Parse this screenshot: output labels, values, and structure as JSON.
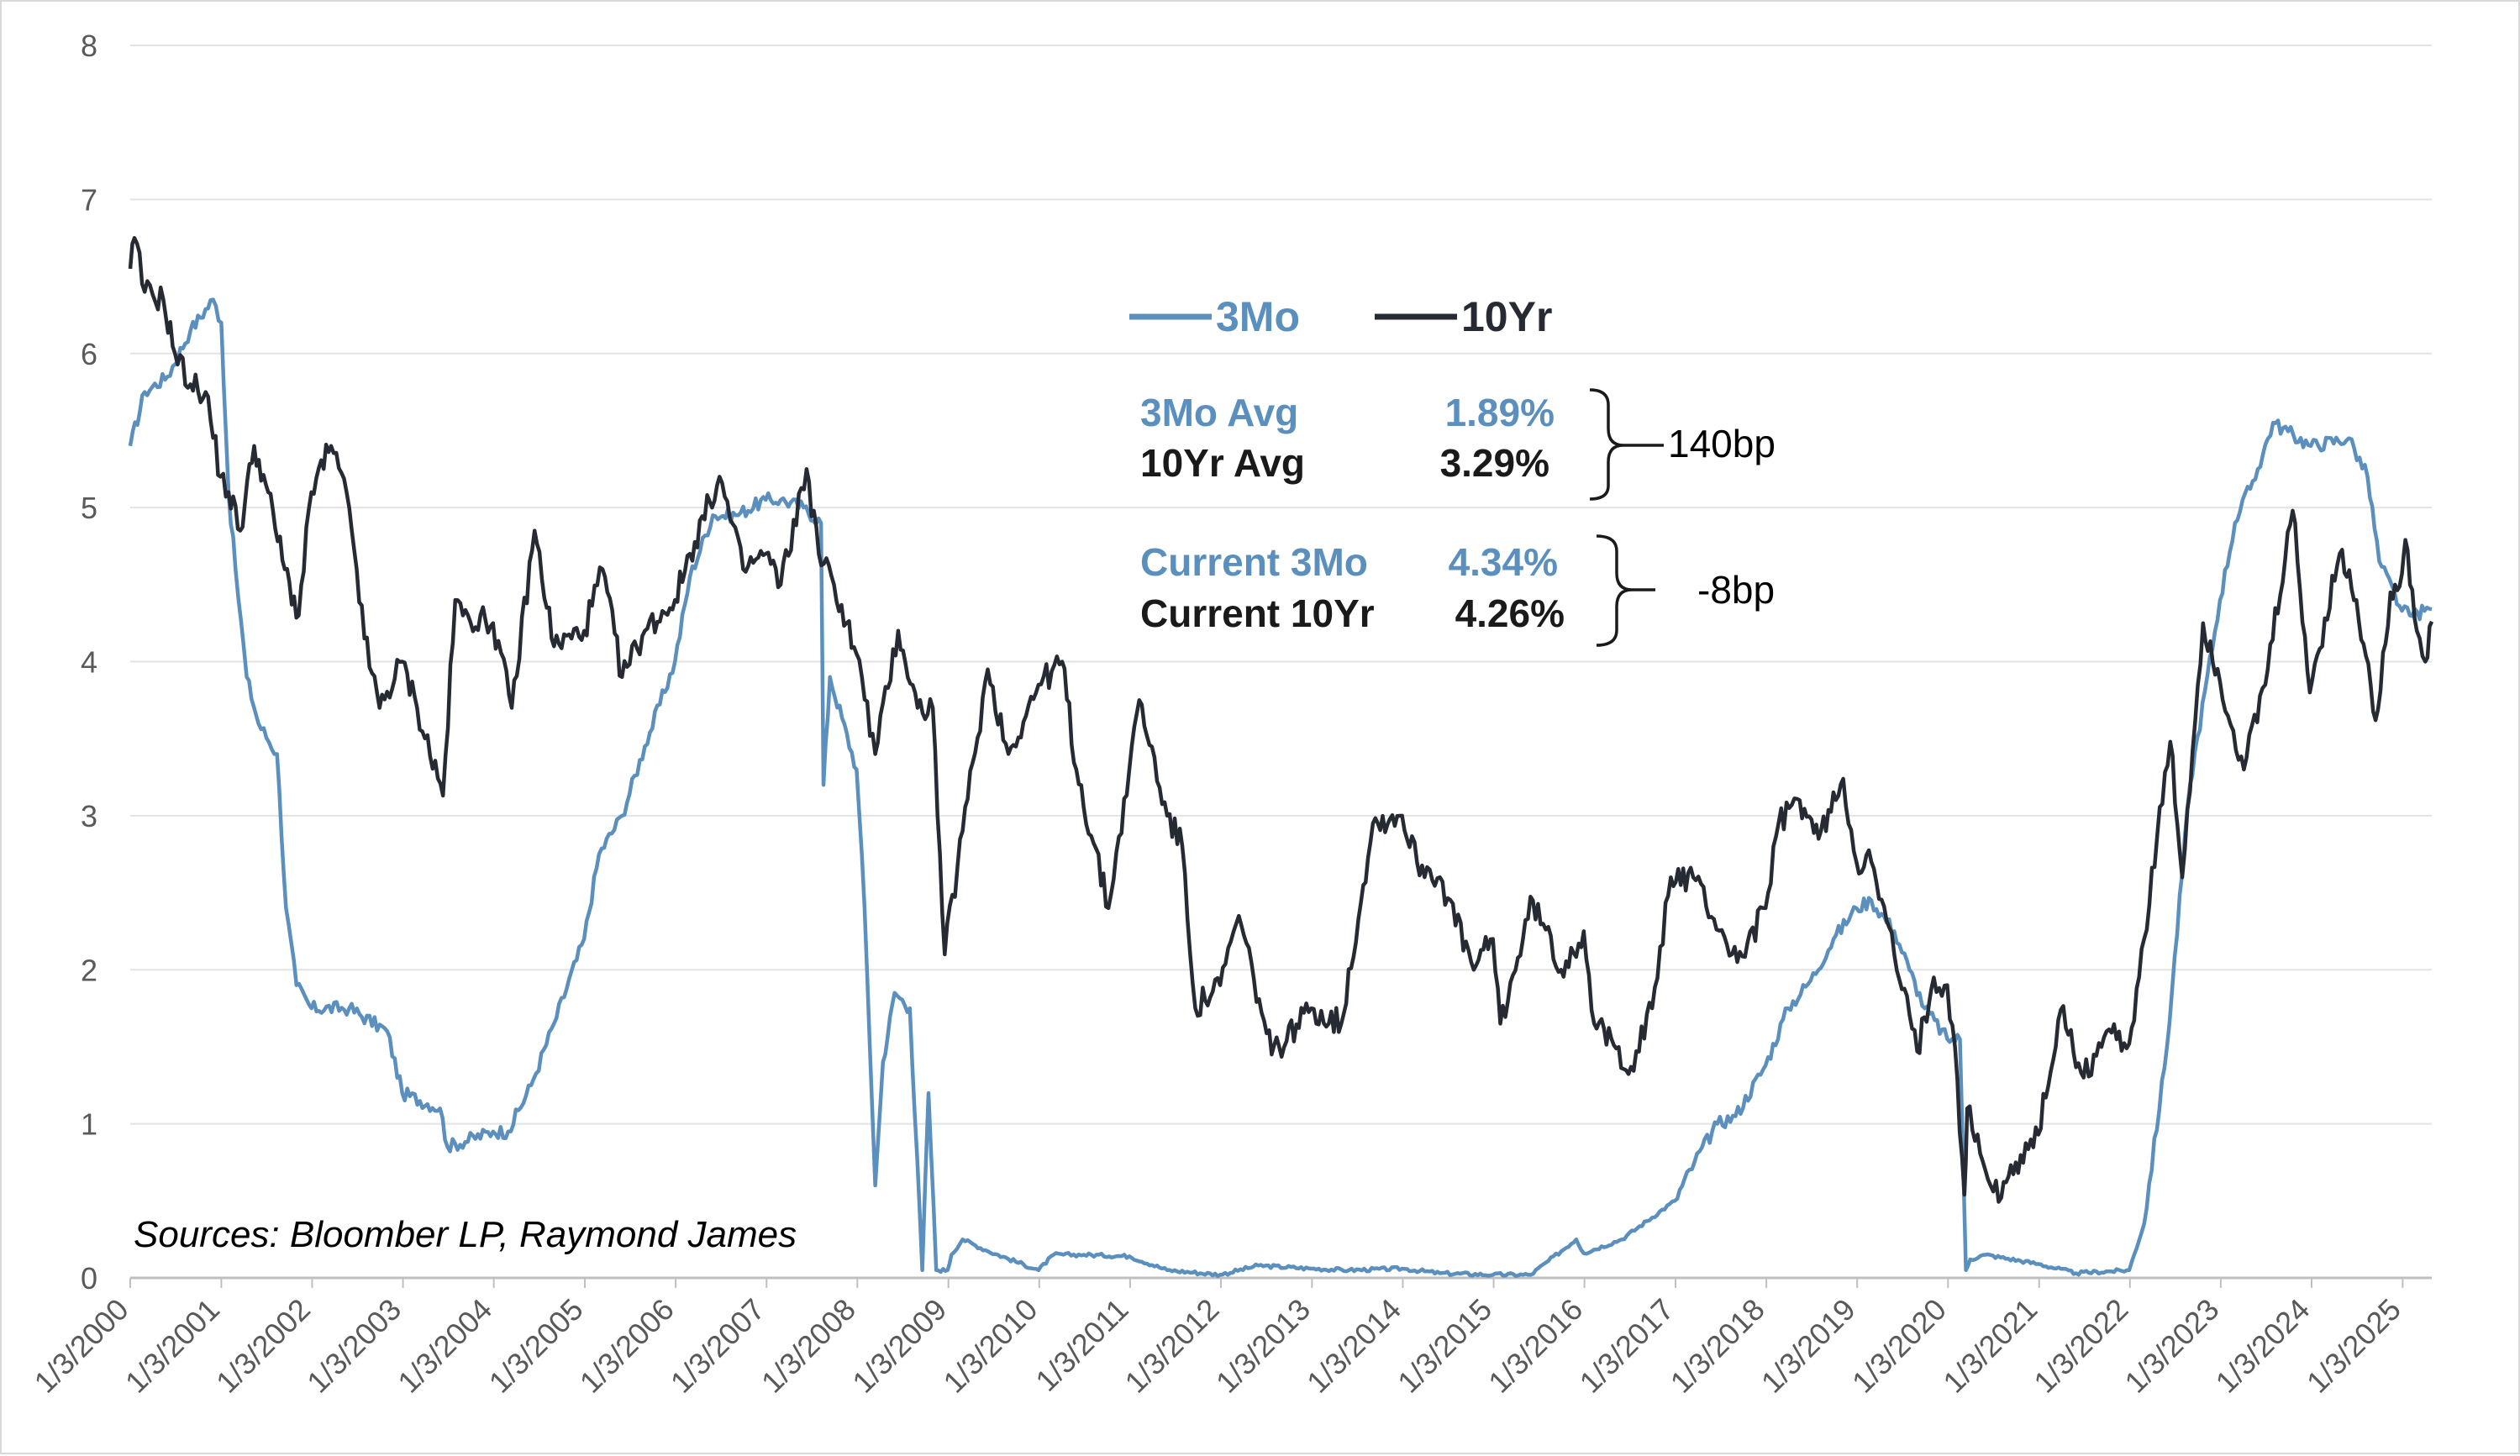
{
  "chart_data": {
    "type": "line",
    "title": "",
    "xlabel": "",
    "ylabel": "",
    "ylim": [
      0,
      8
    ],
    "yticks": [
      0,
      1,
      2,
      3,
      4,
      5,
      6,
      7,
      8
    ],
    "xlim": [
      "2000-01-03",
      "2025-04-30"
    ],
    "xtick_labels": [
      "1/3/2000",
      "1/3/2001",
      "1/3/2002",
      "1/3/2003",
      "1/3/2004",
      "1/3/2005",
      "1/3/2006",
      "1/3/2007",
      "1/3/2008",
      "1/3/2009",
      "1/3/2010",
      "1/3/2011",
      "1/3/2012",
      "1/3/2013",
      "1/3/2014",
      "1/3/2015",
      "1/3/2016",
      "1/3/2017",
      "1/3/2018",
      "1/3/2019",
      "1/3/2020",
      "1/3/2021",
      "1/3/2022",
      "1/3/2023",
      "1/3/2024",
      "1/3/2025"
    ],
    "grid": "horizontal",
    "legend_position": "top-center",
    "colors": {
      "3Mo": "#5b8fbd",
      "10Yr": "#262a33"
    },
    "series": [
      {
        "name": "3Mo",
        "color": "#5b8fbd",
        "points": [
          [
            "2000-01-03",
            5.4
          ],
          [
            "2000-03-01",
            5.75
          ],
          [
            "2000-06-01",
            5.85
          ],
          [
            "2000-09-01",
            6.15
          ],
          [
            "2000-12-01",
            6.35
          ],
          [
            "2001-01-03",
            6.2
          ],
          [
            "2001-02-01",
            5.1
          ],
          [
            "2001-03-01",
            4.6
          ],
          [
            "2001-04-15",
            3.9
          ],
          [
            "2001-06-01",
            3.6
          ],
          [
            "2001-08-15",
            3.4
          ],
          [
            "2001-09-20",
            2.4
          ],
          [
            "2001-11-01",
            1.9
          ],
          [
            "2001-12-31",
            1.75
          ],
          [
            "2002-06-01",
            1.75
          ],
          [
            "2002-11-01",
            1.6
          ],
          [
            "2002-12-31",
            1.2
          ],
          [
            "2003-06-01",
            1.1
          ],
          [
            "2003-07-01",
            0.85
          ],
          [
            "2003-12-31",
            0.95
          ],
          [
            "2004-03-01",
            0.95
          ],
          [
            "2004-06-01",
            1.25
          ],
          [
            "2004-09-01",
            1.65
          ],
          [
            "2004-12-31",
            2.2
          ],
          [
            "2005-03-01",
            2.75
          ],
          [
            "2005-06-01",
            3.0
          ],
          [
            "2005-09-01",
            3.45
          ],
          [
            "2005-12-31",
            4.0
          ],
          [
            "2006-03-01",
            4.55
          ],
          [
            "2006-06-01",
            4.95
          ],
          [
            "2006-09-01",
            4.95
          ],
          [
            "2006-12-31",
            5.05
          ],
          [
            "2007-03-01",
            5.05
          ],
          [
            "2007-06-01",
            5.0
          ],
          [
            "2007-08-10",
            4.9
          ],
          [
            "2007-08-20",
            3.2
          ],
          [
            "2007-09-15",
            3.9
          ],
          [
            "2007-12-31",
            3.3
          ],
          [
            "2008-02-01",
            2.4
          ],
          [
            "2008-03-15",
            0.6
          ],
          [
            "2008-04-15",
            1.4
          ],
          [
            "2008-06-01",
            1.85
          ],
          [
            "2008-08-01",
            1.75
          ],
          [
            "2008-09-20",
            0.05
          ],
          [
            "2008-10-15",
            1.2
          ],
          [
            "2008-11-15",
            0.05
          ],
          [
            "2008-12-31",
            0.05
          ],
          [
            "2009-01-15",
            0.15
          ],
          [
            "2009-03-01",
            0.25
          ],
          [
            "2009-06-01",
            0.18
          ],
          [
            "2009-12-31",
            0.05
          ],
          [
            "2010-03-01",
            0.15
          ],
          [
            "2010-07-01",
            0.15
          ],
          [
            "2010-12-31",
            0.14
          ],
          [
            "2011-06-01",
            0.05
          ],
          [
            "2011-12-31",
            0.02
          ],
          [
            "2012-06-01",
            0.08
          ],
          [
            "2012-12-31",
            0.06
          ],
          [
            "2013-06-01",
            0.05
          ],
          [
            "2013-12-31",
            0.06
          ],
          [
            "2014-06-01",
            0.03
          ],
          [
            "2014-12-31",
            0.02
          ],
          [
            "2015-06-01",
            0.02
          ],
          [
            "2015-12-01",
            0.25
          ],
          [
            "2015-12-31",
            0.16
          ],
          [
            "2016-06-01",
            0.25
          ],
          [
            "2016-12-31",
            0.5
          ],
          [
            "2017-03-20",
            0.75
          ],
          [
            "2017-06-20",
            1.0
          ],
          [
            "2017-09-01",
            1.05
          ],
          [
            "2017-12-31",
            1.38
          ],
          [
            "2018-03-31",
            1.75
          ],
          [
            "2018-06-30",
            1.93
          ],
          [
            "2018-09-30",
            2.2
          ],
          [
            "2018-12-31",
            2.4
          ],
          [
            "2019-03-01",
            2.45
          ],
          [
            "2019-06-01",
            2.25
          ],
          [
            "2019-08-01",
            2.0
          ],
          [
            "2019-10-01",
            1.75
          ],
          [
            "2019-12-31",
            1.55
          ],
          [
            "2020-02-20",
            1.55
          ],
          [
            "2020-03-15",
            0.05
          ],
          [
            "2020-04-01",
            0.12
          ],
          [
            "2020-06-01",
            0.15
          ],
          [
            "2020-12-31",
            0.09
          ],
          [
            "2021-06-01",
            0.03
          ],
          [
            "2021-12-31",
            0.05
          ],
          [
            "2022-03-01",
            0.35
          ],
          [
            "2022-06-01",
            1.5
          ],
          [
            "2022-09-01",
            3.2
          ],
          [
            "2022-12-31",
            4.4
          ],
          [
            "2023-03-01",
            4.9
          ],
          [
            "2023-06-01",
            5.25
          ],
          [
            "2023-08-01",
            5.55
          ],
          [
            "2023-12-31",
            5.4
          ],
          [
            "2024-06-01",
            5.45
          ],
          [
            "2024-08-15",
            5.2
          ],
          [
            "2024-10-01",
            4.65
          ],
          [
            "2024-12-31",
            4.33
          ],
          [
            "2025-02-01",
            4.3
          ],
          [
            "2025-04-30",
            4.34
          ]
        ]
      },
      {
        "name": "10Yr",
        "color": "#262a33",
        "points": [
          [
            "2000-01-03",
            6.55
          ],
          [
            "2000-01-20",
            6.75
          ],
          [
            "2000-03-01",
            6.4
          ],
          [
            "2000-05-15",
            6.35
          ],
          [
            "2000-07-01",
            6.0
          ],
          [
            "2000-09-01",
            5.8
          ],
          [
            "2000-11-01",
            5.75
          ],
          [
            "2000-12-31",
            5.2
          ],
          [
            "2001-02-01",
            5.1
          ],
          [
            "2001-03-20",
            4.85
          ],
          [
            "2001-05-15",
            5.4
          ],
          [
            "2001-07-01",
            5.15
          ],
          [
            "2001-09-15",
            4.6
          ],
          [
            "2001-11-10",
            4.3
          ],
          [
            "2001-12-31",
            5.1
          ],
          [
            "2002-03-20",
            5.4
          ],
          [
            "2002-06-01",
            5.0
          ],
          [
            "2002-07-01",
            4.6
          ],
          [
            "2002-08-01",
            4.15
          ],
          [
            "2002-10-01",
            3.7
          ],
          [
            "2002-12-31",
            4.0
          ],
          [
            "2003-03-01",
            3.7
          ],
          [
            "2003-06-13",
            3.13
          ],
          [
            "2003-08-01",
            4.4
          ],
          [
            "2003-09-01",
            4.3
          ],
          [
            "2003-12-31",
            4.25
          ],
          [
            "2004-03-15",
            3.7
          ],
          [
            "2004-06-15",
            4.85
          ],
          [
            "2004-09-01",
            4.1
          ],
          [
            "2004-12-31",
            4.2
          ],
          [
            "2005-03-15",
            4.6
          ],
          [
            "2005-06-01",
            3.9
          ],
          [
            "2005-09-01",
            4.2
          ],
          [
            "2005-12-31",
            4.4
          ],
          [
            "2006-03-01",
            4.7
          ],
          [
            "2006-06-28",
            5.2
          ],
          [
            "2006-10-01",
            4.6
          ],
          [
            "2006-12-31",
            4.7
          ],
          [
            "2007-03-01",
            4.5
          ],
          [
            "2007-06-13",
            5.25
          ],
          [
            "2007-08-01",
            4.7
          ],
          [
            "2007-10-01",
            4.5
          ],
          [
            "2007-12-31",
            4.05
          ],
          [
            "2008-03-15",
            3.4
          ],
          [
            "2008-06-15",
            4.2
          ],
          [
            "2008-09-01",
            3.7
          ],
          [
            "2008-11-01",
            3.7
          ],
          [
            "2008-12-19",
            2.1
          ],
          [
            "2009-03-01",
            2.9
          ],
          [
            "2009-06-10",
            3.95
          ],
          [
            "2009-09-01",
            3.4
          ],
          [
            "2009-12-31",
            3.85
          ],
          [
            "2010-04-05",
            4.0
          ],
          [
            "2010-06-01",
            3.3
          ],
          [
            "2010-10-08",
            2.4
          ],
          [
            "2010-12-31",
            3.3
          ],
          [
            "2011-02-09",
            3.75
          ],
          [
            "2011-06-01",
            3.0
          ],
          [
            "2011-08-01",
            2.8
          ],
          [
            "2011-09-22",
            1.75
          ],
          [
            "2011-12-31",
            1.9
          ],
          [
            "2012-03-15",
            2.35
          ],
          [
            "2012-07-25",
            1.45
          ],
          [
            "2012-12-31",
            1.75
          ],
          [
            "2013-05-01",
            1.65
          ],
          [
            "2013-09-05",
            2.95
          ],
          [
            "2013-12-31",
            3.0
          ],
          [
            "2014-03-01",
            2.7
          ],
          [
            "2014-06-01",
            2.6
          ],
          [
            "2014-10-15",
            2.0
          ],
          [
            "2014-12-31",
            2.2
          ],
          [
            "2015-01-30",
            1.65
          ],
          [
            "2015-06-10",
            2.45
          ],
          [
            "2015-10-01",
            2.0
          ],
          [
            "2015-12-31",
            2.25
          ],
          [
            "2016-02-11",
            1.65
          ],
          [
            "2016-07-08",
            1.37
          ],
          [
            "2016-10-01",
            1.75
          ],
          [
            "2016-12-15",
            2.6
          ],
          [
            "2017-03-15",
            2.6
          ],
          [
            "2017-09-08",
            2.05
          ],
          [
            "2017-12-31",
            2.4
          ],
          [
            "2018-02-21",
            2.95
          ],
          [
            "2018-05-17",
            3.1
          ],
          [
            "2018-08-01",
            2.85
          ],
          [
            "2018-11-08",
            3.24
          ],
          [
            "2018-12-31",
            2.7
          ],
          [
            "2019-03-01",
            2.7
          ],
          [
            "2019-06-01",
            2.1
          ],
          [
            "2019-09-01",
            1.47
          ],
          [
            "2019-11-07",
            1.95
          ],
          [
            "2019-12-31",
            1.9
          ],
          [
            "2020-01-31",
            1.5
          ],
          [
            "2020-03-09",
            0.54
          ],
          [
            "2020-03-20",
            1.1
          ],
          [
            "2020-06-01",
            0.7
          ],
          [
            "2020-08-04",
            0.52
          ],
          [
            "2020-10-01",
            0.75
          ],
          [
            "2020-12-31",
            0.93
          ],
          [
            "2021-03-31",
            1.74
          ],
          [
            "2021-07-01",
            1.3
          ],
          [
            "2021-10-01",
            1.6
          ],
          [
            "2021-12-31",
            1.52
          ],
          [
            "2022-03-01",
            2.2
          ],
          [
            "2022-06-14",
            3.48
          ],
          [
            "2022-08-01",
            2.6
          ],
          [
            "2022-10-24",
            4.25
          ],
          [
            "2022-12-31",
            3.87
          ],
          [
            "2023-04-06",
            3.3
          ],
          [
            "2023-07-01",
            3.85
          ],
          [
            "2023-10-19",
            4.98
          ],
          [
            "2023-12-27",
            3.8
          ],
          [
            "2024-04-25",
            4.7
          ],
          [
            "2024-07-01",
            4.4
          ],
          [
            "2024-09-16",
            3.62
          ],
          [
            "2024-11-15",
            4.45
          ],
          [
            "2024-12-31",
            4.57
          ],
          [
            "2025-01-14",
            4.79
          ],
          [
            "2025-03-01",
            4.2
          ],
          [
            "2025-04-04",
            4.0
          ],
          [
            "2025-04-30",
            4.26
          ]
        ]
      }
    ]
  },
  "legend": {
    "items": [
      "3Mo",
      "10Yr"
    ]
  },
  "stats": {
    "avg_3mo_label": "3Mo Avg",
    "avg_3mo_value": "1.89%",
    "avg_10yr_label": "10Yr Avg",
    "avg_10yr_value": "3.29%",
    "avg_spread": "140bp",
    "cur_3mo_label": "Current 3Mo",
    "cur_3mo_value": "4.34%",
    "cur_10yr_label": "Current 10Yr",
    "cur_10yr_value": "4.26%",
    "cur_spread": "-8bp"
  },
  "source": "Sources: Bloomber LP, Raymond James"
}
